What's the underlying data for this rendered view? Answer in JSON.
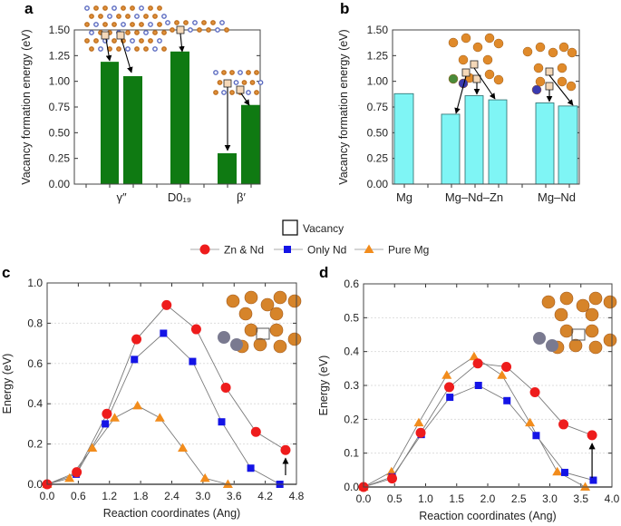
{
  "legend": {
    "vacancy_label": "Vacancy",
    "series": [
      "Zn & Nd",
      "Only Nd",
      "Pure Mg"
    ]
  },
  "colors": {
    "zn_nd": "#ee1c1c",
    "only_nd": "#1414e6",
    "pure_mg": "#f28c1c",
    "bar_a": "#0f7a12",
    "bar_b": "#7ff5f5",
    "line": "#7a7a7a"
  },
  "chart_data": [
    {
      "panel": "a",
      "type": "bar",
      "ylabel": "Vacancy formation energy (eV)",
      "ylim": [
        0,
        1.5
      ],
      "yticks": [
        "0.00",
        "0.25",
        "0.50",
        "0.75",
        "1.00",
        "1.25",
        "1.50"
      ],
      "categories": [
        "γ″",
        "D0₁₉",
        "β′"
      ],
      "groups": [
        [
          1.19,
          1.05
        ],
        [
          1.29
        ],
        [
          0.3,
          0.77
        ]
      ],
      "grid": false
    },
    {
      "panel": "b",
      "type": "bar",
      "ylabel": "Vacancy formation energy (eV)",
      "ylim": [
        0,
        1.5
      ],
      "yticks": [
        "0.00",
        "0.25",
        "0.50",
        "0.75",
        "1.00",
        "1.25",
        "1.50"
      ],
      "categories": [
        "Mg",
        "Mg–Nd–Zn",
        "Mg–Nd"
      ],
      "groups": [
        [
          0.88
        ],
        [
          0.68,
          0.86,
          0.82
        ],
        [
          0.79,
          0.76
        ]
      ],
      "grid": false
    },
    {
      "panel": "c",
      "type": "line",
      "xlabel": "Reaction coordinates (Ang)",
      "ylabel": "Energy (eV)",
      "xlim": [
        0,
        4.8
      ],
      "ylim": [
        0,
        1.0
      ],
      "xticks": [
        "0.0",
        "0.6",
        "1.2",
        "1.8",
        "2.4",
        "3.0",
        "3.6",
        "4.2",
        "4.8"
      ],
      "yticks": [
        "0.0",
        "0.2",
        "0.4",
        "0.6",
        "0.8",
        "1.0"
      ],
      "grid": true,
      "series": [
        {
          "name": "Zn & Nd",
          "x": [
            0,
            0.57,
            1.15,
            1.72,
            2.3,
            2.87,
            3.44,
            4.02,
            4.59
          ],
          "y": [
            0,
            0.06,
            0.35,
            0.72,
            0.89,
            0.77,
            0.48,
            0.26,
            0.17
          ]
        },
        {
          "name": "Only Nd",
          "x": [
            0,
            0.56,
            1.12,
            1.68,
            2.24,
            2.8,
            3.36,
            3.92,
            4.48
          ],
          "y": [
            0,
            0.05,
            0.3,
            0.62,
            0.75,
            0.61,
            0.31,
            0.08,
            0.0
          ]
        },
        {
          "name": "Pure Mg",
          "x": [
            0,
            0.43,
            0.87,
            1.3,
            1.74,
            2.17,
            2.61,
            3.04,
            3.48
          ],
          "y": [
            0,
            0.03,
            0.18,
            0.33,
            0.39,
            0.33,
            0.18,
            0.03,
            0.0
          ]
        }
      ]
    },
    {
      "panel": "d",
      "type": "line",
      "xlabel": "Reaction coordinates (Ang)",
      "ylabel": "Energy (eV)",
      "xlim": [
        0,
        4.0
      ],
      "ylim": [
        0,
        0.6
      ],
      "xticks": [
        "0.0",
        "0.5",
        "1.0",
        "1.5",
        "2.0",
        "2.5",
        "3.0",
        "3.5",
        "4.0"
      ],
      "yticks": [
        "0.0",
        "0.1",
        "0.2",
        "0.3",
        "0.4",
        "0.5",
        "0.6"
      ],
      "grid": true,
      "series": [
        {
          "name": "Zn & Nd",
          "x": [
            0,
            0.46,
            0.92,
            1.38,
            1.84,
            2.3,
            2.76,
            3.22,
            3.68
          ],
          "y": [
            0,
            0.025,
            0.16,
            0.295,
            0.365,
            0.355,
            0.28,
            0.185,
            0.153
          ]
        },
        {
          "name": "Only Nd",
          "x": [
            0,
            0.46,
            0.93,
            1.39,
            1.85,
            2.31,
            2.78,
            3.24,
            3.7
          ],
          "y": [
            0,
            0.03,
            0.155,
            0.265,
            0.3,
            0.255,
            0.152,
            0.043,
            0.02
          ]
        },
        {
          "name": "Pure Mg",
          "x": [
            0,
            0.45,
            0.89,
            1.34,
            1.78,
            2.23,
            2.68,
            3.12,
            3.57
          ],
          "y": [
            0,
            0.045,
            0.19,
            0.33,
            0.385,
            0.33,
            0.19,
            0.045,
            0.0
          ]
        }
      ]
    }
  ]
}
